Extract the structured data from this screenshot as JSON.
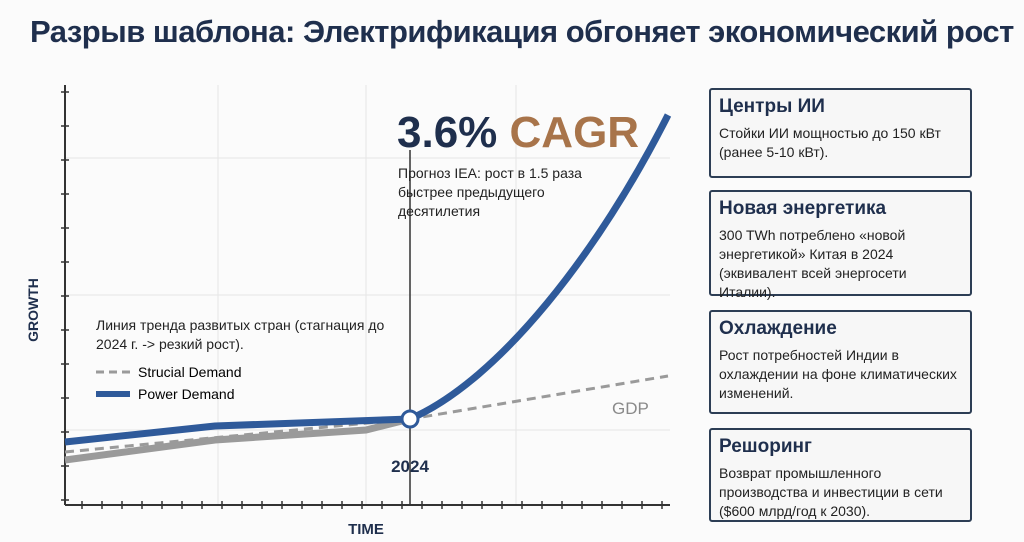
{
  "title": "Разрыв шаблона: Электрификация обгоняет экономический рост",
  "chart": {
    "cagr_value": "3.6%",
    "cagr_label": "CAGR",
    "forecast": "Прогноз IEA: рост в 1.5 раза быстрее предыдущего десятилетия",
    "y_axis_label": "GROWTH",
    "x_axis_label": "TIME",
    "marker_label": "2024",
    "gdp_label": "GDP",
    "trend_note": "Линия тренда развитых стран (стагнация до 2024 г. -> резкий рост).",
    "legend": [
      "Strucial Demand",
      "Power Demand"
    ]
  },
  "cards": [
    {
      "title": "Центры ИИ",
      "text": "Стойки ИИ мощностью до 150 кВт (ранее 5-10 кВт)."
    },
    {
      "title": "Новая энергетика",
      "text": "300 TWh потреблено «новой энергетикой» Китая в 2024 (эквивалент всей энергосети Италии)."
    },
    {
      "title": "Охлаждение",
      "text": "Рост потребностей Индии в охлаждении на фоне климатических изменений."
    },
    {
      "title": "Решоринг",
      "text": "Возврат промышленного производства и инвестиции в сети ($600 млрд/год к 2030)."
    }
  ]
}
